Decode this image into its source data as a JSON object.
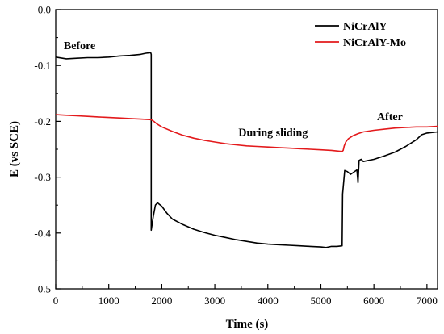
{
  "chart_data": {
    "type": "line",
    "xlabel": "Time (s)",
    "ylabel": "E (vs SCE)",
    "xlim": [
      0,
      7200
    ],
    "ylim": [
      -0.5,
      0.0
    ],
    "x_ticks": [
      0,
      1000,
      2000,
      3000,
      4000,
      5000,
      6000,
      7000
    ],
    "x_tick_labels": [
      "0",
      "1000",
      "2000",
      "3000",
      "4000",
      "5000",
      "6000",
      "7000"
    ],
    "y_ticks": [
      0.0,
      -0.1,
      -0.2,
      -0.3,
      -0.4,
      -0.5
    ],
    "y_tick_labels": [
      "0.0",
      "-0.1",
      "-0.2",
      "-0.3",
      "-0.4",
      "-0.5"
    ],
    "grid": false,
    "legend_position": "top-right",
    "annotations": [
      {
        "text": "Before",
        "x": 450,
        "y": -0.071
      },
      {
        "text": "During sliding",
        "x": 4100,
        "y": -0.226
      },
      {
        "text": "After",
        "x": 6300,
        "y": -0.198
      }
    ],
    "series": [
      {
        "name": "NiCrAlY",
        "color": "#000000",
        "points": [
          [
            0,
            -0.085
          ],
          [
            200,
            -0.088
          ],
          [
            400,
            -0.087
          ],
          [
            600,
            -0.086
          ],
          [
            800,
            -0.086
          ],
          [
            1000,
            -0.085
          ],
          [
            1200,
            -0.083
          ],
          [
            1400,
            -0.082
          ],
          [
            1600,
            -0.08
          ],
          [
            1700,
            -0.078
          ],
          [
            1790,
            -0.077
          ],
          [
            1800,
            -0.08
          ],
          [
            1800,
            -0.395
          ],
          [
            1840,
            -0.37
          ],
          [
            1880,
            -0.35
          ],
          [
            1920,
            -0.346
          ],
          [
            2000,
            -0.352
          ],
          [
            2100,
            -0.365
          ],
          [
            2200,
            -0.375
          ],
          [
            2400,
            -0.385
          ],
          [
            2600,
            -0.393
          ],
          [
            2800,
            -0.399
          ],
          [
            3000,
            -0.404
          ],
          [
            3200,
            -0.408
          ],
          [
            3400,
            -0.412
          ],
          [
            3600,
            -0.415
          ],
          [
            3800,
            -0.418
          ],
          [
            4000,
            -0.42
          ],
          [
            4200,
            -0.421
          ],
          [
            4400,
            -0.422
          ],
          [
            4600,
            -0.423
          ],
          [
            4800,
            -0.424
          ],
          [
            5000,
            -0.425
          ],
          [
            5100,
            -0.426
          ],
          [
            5200,
            -0.424
          ],
          [
            5300,
            -0.424
          ],
          [
            5400,
            -0.423
          ],
          [
            5410,
            -0.33
          ],
          [
            5450,
            -0.288
          ],
          [
            5500,
            -0.29
          ],
          [
            5560,
            -0.295
          ],
          [
            5620,
            -0.291
          ],
          [
            5680,
            -0.287
          ],
          [
            5700,
            -0.31
          ],
          [
            5720,
            -0.27
          ],
          [
            5760,
            -0.268
          ],
          [
            5800,
            -0.272
          ],
          [
            5900,
            -0.27
          ],
          [
            6000,
            -0.268
          ],
          [
            6200,
            -0.262
          ],
          [
            6400,
            -0.255
          ],
          [
            6600,
            -0.245
          ],
          [
            6800,
            -0.233
          ],
          [
            6900,
            -0.224
          ],
          [
            7000,
            -0.221
          ],
          [
            7200,
            -0.219
          ]
        ]
      },
      {
        "name": "NiCrAlY-Mo",
        "color": "#e31a1c",
        "points": [
          [
            0,
            -0.188
          ],
          [
            200,
            -0.189
          ],
          [
            400,
            -0.19
          ],
          [
            600,
            -0.191
          ],
          [
            800,
            -0.192
          ],
          [
            1000,
            -0.193
          ],
          [
            1200,
            -0.194
          ],
          [
            1400,
            -0.195
          ],
          [
            1600,
            -0.196
          ],
          [
            1800,
            -0.197
          ],
          [
            1850,
            -0.2
          ],
          [
            1900,
            -0.204
          ],
          [
            2000,
            -0.21
          ],
          [
            2200,
            -0.218
          ],
          [
            2400,
            -0.225
          ],
          [
            2600,
            -0.23
          ],
          [
            2800,
            -0.234
          ],
          [
            3000,
            -0.237
          ],
          [
            3200,
            -0.24
          ],
          [
            3400,
            -0.242
          ],
          [
            3600,
            -0.244
          ],
          [
            3800,
            -0.245
          ],
          [
            4000,
            -0.246
          ],
          [
            4200,
            -0.247
          ],
          [
            4400,
            -0.248
          ],
          [
            4600,
            -0.249
          ],
          [
            4800,
            -0.25
          ],
          [
            5000,
            -0.251
          ],
          [
            5200,
            -0.252
          ],
          [
            5400,
            -0.254
          ],
          [
            5420,
            -0.252
          ],
          [
            5440,
            -0.244
          ],
          [
            5470,
            -0.237
          ],
          [
            5520,
            -0.231
          ],
          [
            5600,
            -0.226
          ],
          [
            5700,
            -0.222
          ],
          [
            5800,
            -0.219
          ],
          [
            6000,
            -0.216
          ],
          [
            6200,
            -0.214
          ],
          [
            6400,
            -0.212
          ],
          [
            6600,
            -0.211
          ],
          [
            6800,
            -0.21
          ],
          [
            7000,
            -0.21
          ],
          [
            7200,
            -0.209
          ]
        ]
      }
    ]
  }
}
